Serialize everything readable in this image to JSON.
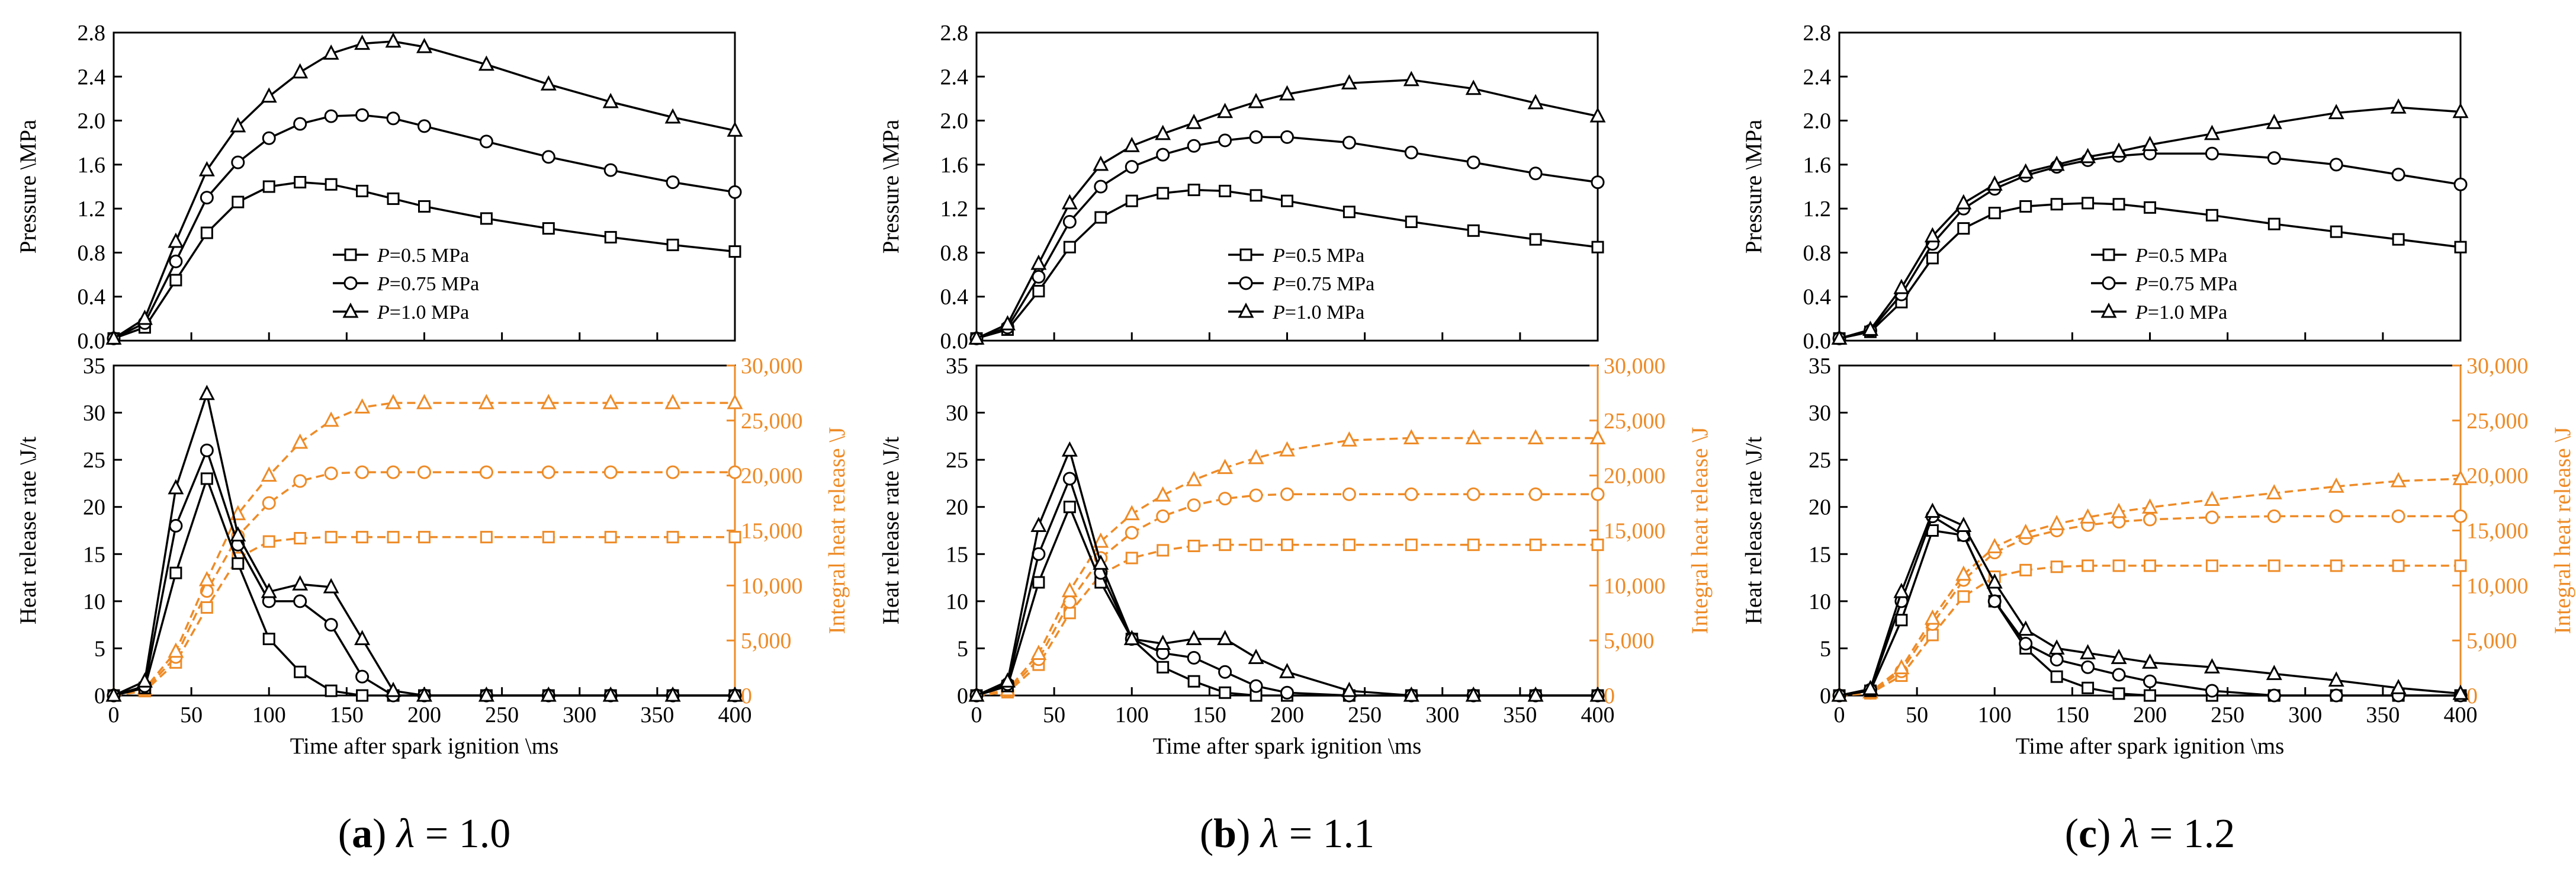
{
  "figure": {
    "colors": {
      "pressure": "#000000",
      "heat_release_rate": "#000000",
      "integral_heat": "#ee8b27"
    },
    "marker_by_series": {
      "P=0.5 MPa": "square",
      "P=0.75 MPa": "circle",
      "P=1.0 MPa": "triangle"
    }
  },
  "chart_data": [
    {
      "panel": "a",
      "caption": {
        "letter": "(a)",
        "lambda": "λ = 1.0"
      },
      "type": "line",
      "x": [
        0,
        20,
        40,
        60,
        80,
        100,
        120,
        140,
        160,
        180,
        200,
        240,
        280,
        320,
        360,
        400
      ],
      "xlabel": "Time after spark ignition \\ms",
      "xlim": [
        0,
        400
      ],
      "xticks": [
        "0",
        "50",
        "100",
        "150",
        "200",
        "250",
        "300",
        "350",
        "400"
      ],
      "pressure": {
        "ylabel": "Pressure \\MPa",
        "ylim": [
          0,
          2.8
        ],
        "yticks": [
          "0.0",
          "0.4",
          "0.8",
          "1.2",
          "1.6",
          "2.0",
          "2.4",
          "2.8"
        ],
        "legend": {
          "position": "center",
          "entries": [
            "P=0.5 MPa",
            "P=0.75 MPa",
            "P=1.0 MPa"
          ]
        },
        "series": [
          {
            "name": "P=0.5 MPa",
            "marker": "square",
            "values": [
              0.02,
              0.12,
              0.55,
              0.98,
              1.26,
              1.4,
              1.44,
              1.42,
              1.36,
              1.29,
              1.22,
              1.11,
              1.02,
              0.94,
              0.87,
              0.81
            ]
          },
          {
            "name": "P=0.75 MPa",
            "marker": "circle",
            "values": [
              0.02,
              0.16,
              0.72,
              1.3,
              1.62,
              1.84,
              1.97,
              2.04,
              2.05,
              2.02,
              1.95,
              1.81,
              1.67,
              1.55,
              1.44,
              1.35
            ]
          },
          {
            "name": "P=1.0 MPa",
            "marker": "triangle",
            "values": [
              0.02,
              0.2,
              0.9,
              1.55,
              1.95,
              2.22,
              2.44,
              2.61,
              2.7,
              2.72,
              2.67,
              2.51,
              2.33,
              2.17,
              2.03,
              1.91
            ]
          }
        ]
      },
      "heat": {
        "ylabel": "Heat release rate \\J/t",
        "ylim": [
          0,
          35
        ],
        "yticks": [
          "0",
          "5",
          "10",
          "15",
          "20",
          "25",
          "30",
          "35"
        ],
        "y2label": "Integral heat release \\J",
        "y2lim": [
          0,
          30000
        ],
        "y2ticks": [
          "0",
          "5,000",
          "10,000",
          "15,000",
          "20,000",
          "25,000",
          "30,000"
        ],
        "rate_series": [
          {
            "name": "P=0.5 MPa",
            "marker": "square",
            "values": [
              0,
              0.8,
              13,
              23,
              14,
              6,
              2.5,
              0.5,
              0,
              0,
              0,
              0,
              0,
              0,
              0,
              0
            ]
          },
          {
            "name": "P=0.75 MPa",
            "marker": "circle",
            "values": [
              0,
              1,
              18,
              26,
              16,
              10,
              10,
              7.5,
              2,
              0,
              0,
              0,
              0,
              0,
              0,
              0
            ]
          },
          {
            "name": "P=1.0 MPa",
            "marker": "triangle",
            "values": [
              0,
              1.5,
              22,
              32,
              17,
              11,
              11.8,
              11.5,
              6,
              0.5,
              0,
              0,
              0,
              0,
              0,
              0
            ]
          }
        ],
        "integral_series": [
          {
            "name": "P=0.5 MPa",
            "marker": "square",
            "values": [
              0,
              400,
              3000,
              8000,
              12500,
              14000,
              14300,
              14400,
              14400,
              14400,
              14400,
              14400,
              14400,
              14400,
              14400,
              14400
            ]
          },
          {
            "name": "P=0.75 MPa",
            "marker": "circle",
            "values": [
              0,
              500,
              3500,
              9500,
              14500,
              17500,
              19500,
              20200,
              20300,
              20300,
              20300,
              20300,
              20300,
              20300,
              20300,
              20300
            ]
          },
          {
            "name": "P=1.0 MPa",
            "marker": "triangle",
            "values": [
              0,
              600,
              4000,
              10500,
              16500,
              20000,
              23000,
              25000,
              26200,
              26600,
              26600,
              26600,
              26600,
              26600,
              26600,
              26600
            ]
          }
        ]
      }
    },
    {
      "panel": "b",
      "caption": {
        "letter": "(b)",
        "lambda": "λ = 1.1"
      },
      "type": "line",
      "x": [
        0,
        20,
        40,
        60,
        80,
        100,
        120,
        140,
        160,
        180,
        200,
        240,
        280,
        320,
        360,
        400
      ],
      "xlabel": "Time after spark ignition \\ms",
      "xlim": [
        0,
        400
      ],
      "xticks": [
        "0",
        "50",
        "100",
        "150",
        "200",
        "250",
        "300",
        "350",
        "400"
      ],
      "pressure": {
        "ylabel": "Pressure \\MPa",
        "ylim": [
          0,
          2.8
        ],
        "yticks": [
          "0.0",
          "0.4",
          "0.8",
          "1.2",
          "1.6",
          "2.0",
          "2.4",
          "2.8"
        ],
        "legend": {
          "position": "center-right",
          "entries": [
            "P=0.5 MPa",
            "P=0.75 MPa",
            "P=1.0 MPa"
          ]
        },
        "series": [
          {
            "name": "P=0.5 MPa",
            "marker": "square",
            "values": [
              0.02,
              0.1,
              0.45,
              0.85,
              1.12,
              1.27,
              1.34,
              1.37,
              1.36,
              1.32,
              1.27,
              1.17,
              1.08,
              1.0,
              0.92,
              0.85
            ]
          },
          {
            "name": "P=0.75 MPa",
            "marker": "circle",
            "values": [
              0.02,
              0.12,
              0.58,
              1.08,
              1.4,
              1.58,
              1.69,
              1.77,
              1.82,
              1.85,
              1.85,
              1.8,
              1.71,
              1.62,
              1.52,
              1.44
            ]
          },
          {
            "name": "P=1.0 MPa",
            "marker": "triangle",
            "values": [
              0.02,
              0.15,
              0.7,
              1.25,
              1.6,
              1.77,
              1.88,
              1.98,
              2.08,
              2.17,
              2.24,
              2.34,
              2.37,
              2.29,
              2.16,
              2.04
            ]
          }
        ]
      },
      "heat": {
        "ylabel": "Heat release rate \\J/t",
        "ylim": [
          0,
          35
        ],
        "yticks": [
          "0",
          "5",
          "10",
          "15",
          "20",
          "25",
          "30",
          "35"
        ],
        "y2label": "Integral heat release \\J",
        "y2lim": [
          0,
          30000
        ],
        "y2ticks": [
          "0",
          "5,000",
          "10,000",
          "15,000",
          "20,000",
          "25,000",
          "30,000"
        ],
        "rate_series": [
          {
            "name": "P=0.5 MPa",
            "marker": "square",
            "values": [
              0,
              1,
              12,
              20,
              12,
              6,
              3,
              1.5,
              0.3,
              0,
              0,
              0,
              0,
              0,
              0,
              0
            ]
          },
          {
            "name": "P=0.75 MPa",
            "marker": "circle",
            "values": [
              0,
              1.2,
              15,
              23,
              13,
              6,
              4.5,
              4,
              2.5,
              1,
              0.3,
              0,
              0,
              0,
              0,
              0
            ]
          },
          {
            "name": "P=1.0 MPa",
            "marker": "triangle",
            "values": [
              0,
              1.5,
              18,
              26,
              14,
              6,
              5.5,
              6,
              6,
              4,
              2.5,
              0.5,
              0,
              0,
              0,
              0
            ]
          }
        ],
        "integral_series": [
          {
            "name": "P=0.5 MPa",
            "marker": "square",
            "values": [
              0,
              300,
              2800,
              7500,
              11000,
              12500,
              13200,
              13600,
              13700,
              13700,
              13700,
              13700,
              13700,
              13700,
              13700,
              13700
            ]
          },
          {
            "name": "P=0.75 MPa",
            "marker": "circle",
            "values": [
              0,
              400,
              3300,
              8500,
              12500,
              14800,
              16300,
              17300,
              17900,
              18200,
              18300,
              18300,
              18300,
              18300,
              18300,
              18300
            ]
          },
          {
            "name": "P=1.0 MPa",
            "marker": "triangle",
            "values": [
              0,
              500,
              3800,
              9500,
              14000,
              16500,
              18200,
              19600,
              20700,
              21600,
              22300,
              23200,
              23400,
              23400,
              23400,
              23400
            ]
          }
        ]
      }
    },
    {
      "panel": "c",
      "caption": {
        "letter": "(c)",
        "lambda": "λ = 1.2"
      },
      "type": "line",
      "x": [
        0,
        20,
        40,
        60,
        80,
        100,
        120,
        140,
        160,
        180,
        200,
        240,
        280,
        320,
        360,
        400
      ],
      "xlabel": "Time after spark ignition \\ms",
      "xlim": [
        0,
        400
      ],
      "xticks": [
        "0",
        "50",
        "100",
        "150",
        "200",
        "250",
        "300",
        "350",
        "400"
      ],
      "pressure": {
        "ylabel": "Pressure \\MPa",
        "ylim": [
          0,
          2.8
        ],
        "yticks": [
          "0.0",
          "0.4",
          "0.8",
          "1.2",
          "1.6",
          "2.0",
          "2.4",
          "2.8"
        ],
        "legend": {
          "position": "center-right",
          "entries": [
            "P=0.5 MPa",
            "P=0.75 MPa",
            "P=1.0 MPa"
          ]
        },
        "series": [
          {
            "name": "P=0.5 MPa",
            "marker": "square",
            "values": [
              0.02,
              0.08,
              0.35,
              0.75,
              1.02,
              1.16,
              1.22,
              1.24,
              1.25,
              1.24,
              1.21,
              1.14,
              1.06,
              0.99,
              0.92,
              0.85
            ]
          },
          {
            "name": "P=0.75 MPa",
            "marker": "circle",
            "values": [
              0.02,
              0.09,
              0.42,
              0.88,
              1.2,
              1.38,
              1.5,
              1.58,
              1.64,
              1.68,
              1.7,
              1.7,
              1.66,
              1.6,
              1.51,
              1.42
            ]
          },
          {
            "name": "P=1.0 MPa",
            "marker": "triangle",
            "values": [
              0.02,
              0.1,
              0.48,
              0.95,
              1.25,
              1.42,
              1.53,
              1.6,
              1.67,
              1.72,
              1.78,
              1.88,
              1.98,
              2.07,
              2.12,
              2.08
            ]
          }
        ]
      },
      "heat": {
        "ylabel": "Heat release rate \\J/t",
        "ylim": [
          0,
          35
        ],
        "yticks": [
          "0",
          "5",
          "10",
          "15",
          "20",
          "25",
          "30",
          "35"
        ],
        "y2label": "Integral heat release \\J",
        "y2lim": [
          0,
          30000
        ],
        "y2ticks": [
          "0",
          "5,000",
          "10,000",
          "15,000",
          "20,000",
          "25,000",
          "30,000"
        ],
        "rate_series": [
          {
            "name": "P=0.5 MPa",
            "marker": "square",
            "values": [
              0,
              0.5,
              8,
              17.5,
              17,
              10,
              5,
              2,
              0.8,
              0.2,
              0,
              0,
              0,
              0,
              0,
              0
            ]
          },
          {
            "name": "P=0.75 MPa",
            "marker": "circle",
            "values": [
              0,
              0.6,
              10,
              19,
              17,
              10,
              5.5,
              3.8,
              3,
              2.2,
              1.5,
              0.5,
              0,
              0,
              0,
              0
            ]
          },
          {
            "name": "P=1.0 MPa",
            "marker": "triangle",
            "values": [
              0,
              0.7,
              11,
              19.5,
              18,
              12,
              7,
              5,
              4.5,
              4,
              3.5,
              3,
              2.3,
              1.6,
              0.8,
              0.2
            ]
          }
        ],
        "integral_series": [
          {
            "name": "P=0.5 MPa",
            "marker": "square",
            "values": [
              0,
              200,
              1800,
              5500,
              9000,
              10800,
              11400,
              11700,
              11800,
              11800,
              11800,
              11800,
              11800,
              11800,
              11800,
              11800
            ]
          },
          {
            "name": "P=0.75 MPa",
            "marker": "circle",
            "values": [
              0,
              250,
              2200,
              6500,
              10500,
              13000,
              14300,
              15000,
              15500,
              15800,
              16000,
              16200,
              16300,
              16300,
              16300,
              16300
            ]
          },
          {
            "name": "P=1.0 MPa",
            "marker": "triangle",
            "values": [
              0,
              300,
              2500,
              7000,
              11000,
              13500,
              14800,
              15600,
              16200,
              16700,
              17100,
              17800,
              18400,
              19000,
              19500,
              19700
            ]
          }
        ]
      }
    }
  ]
}
